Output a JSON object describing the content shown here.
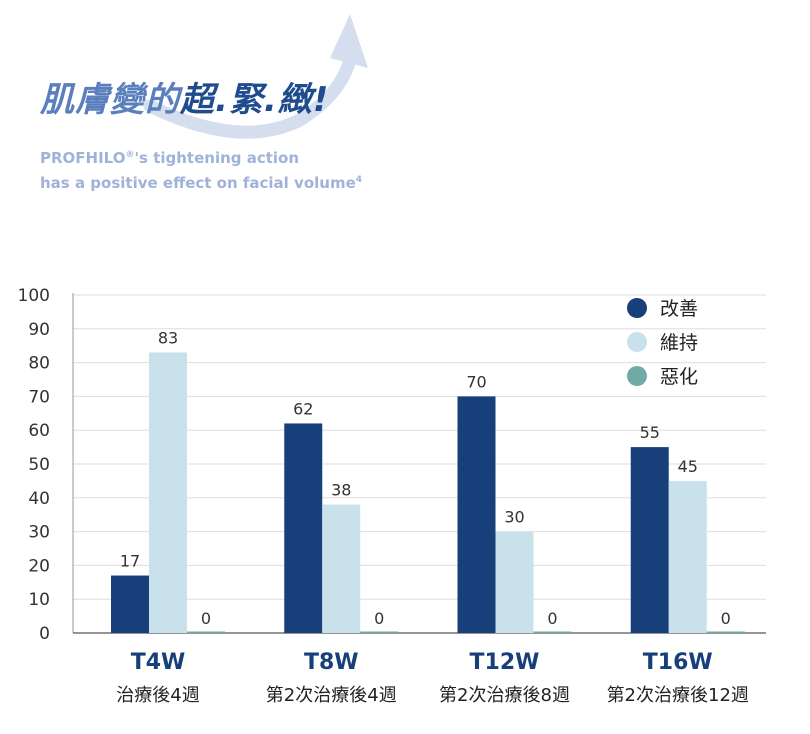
{
  "header": {
    "headline_light": "肌膚變的",
    "headline_dark": "超.緊.緻!",
    "subtitle_line1_a": "PROFHILO",
    "subtitle_line1_sup": "®",
    "subtitle_line1_b": "'s tightening action",
    "subtitle_line2_a": "has a positive effect on facial volume",
    "subtitle_line2_sup": "4"
  },
  "colors": {
    "improve": "#17407a",
    "maintain": "#c8e1ea",
    "worsen": "#71aba8",
    "category_label": "#17407a",
    "grid": "#dddddd",
    "swoosh": "#d4deef"
  },
  "chart_data": {
    "type": "bar",
    "categories": [
      "T4W",
      "T8W",
      "T12W",
      "T16W"
    ],
    "category_sublabels": [
      "治療後4週",
      "第2次治療後4週",
      "第2次治療後8週",
      "第2次治療後12週"
    ],
    "series": [
      {
        "name": "改善",
        "values": [
          17,
          62,
          70,
          55
        ]
      },
      {
        "name": "維持",
        "values": [
          83,
          38,
          30,
          45
        ]
      },
      {
        "name": "惡化",
        "values": [
          0,
          0,
          0,
          0
        ]
      }
    ],
    "yticks": [
      0,
      10,
      20,
      30,
      40,
      50,
      60,
      70,
      80,
      90,
      100
    ],
    "ylim": [
      0,
      100
    ],
    "grid": true,
    "legend": "top-right",
    "data_labels": true
  }
}
